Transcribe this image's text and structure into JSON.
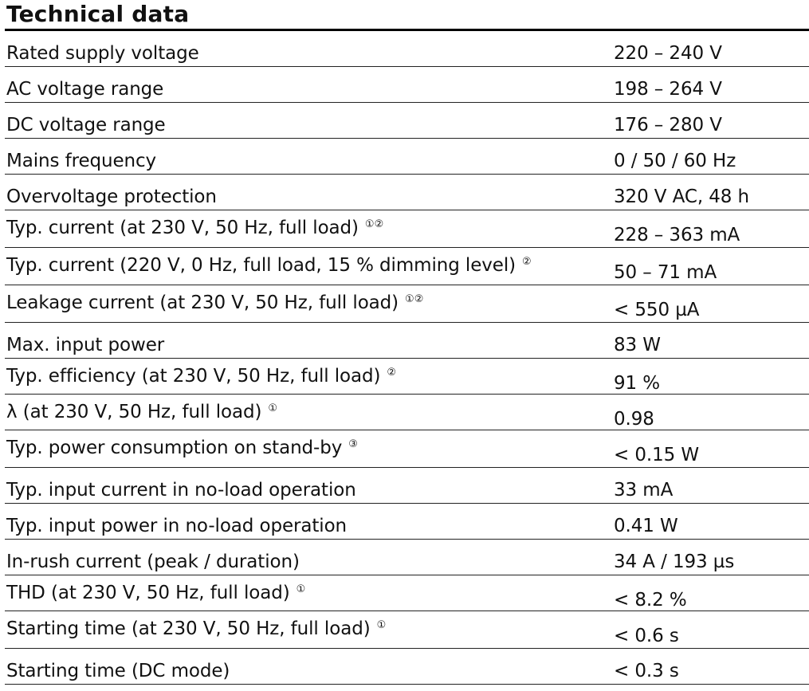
{
  "title": "Technical data",
  "rows": [
    {
      "label": "Rated supply voltage",
      "note": "",
      "value": "220 – 240 V"
    },
    {
      "label": "AC voltage range",
      "note": "",
      "value": "198 – 264 V"
    },
    {
      "label": "DC voltage range",
      "note": "",
      "value": "176 – 280 V"
    },
    {
      "label": "Mains frequency",
      "note": "",
      "value": "0 / 50 / 60 Hz"
    },
    {
      "label": "Overvoltage protection",
      "note": "",
      "value": "320 V AC, 48 h"
    },
    {
      "label": "Typ. current (at 230 V, 50 Hz, full load)",
      "note": "①②",
      "value": "228 – 363 mA"
    },
    {
      "label": "Typ. current (220 V, 0 Hz, full load, 15 % dimming level)",
      "note": "②",
      "value": "50 – 71 mA"
    },
    {
      "label": "Leakage current (at 230 V, 50 Hz, full load)",
      "note": "①②",
      "value": "< 550 µA"
    },
    {
      "label": "Max. input power",
      "note": "",
      "value": "83 W"
    },
    {
      "label": "Typ. efficiency (at 230 V, 50 Hz, full load)",
      "note": "②",
      "value": "91 %"
    },
    {
      "label": "λ (at 230 V, 50 Hz, full load)",
      "note": "①",
      "value": "0.98"
    },
    {
      "label": "Typ. power consumption on stand-by",
      "note": "③",
      "value": "< 0.15 W"
    },
    {
      "label": "Typ. input current in no-load operation",
      "note": "",
      "value": "33 mA"
    },
    {
      "label": "Typ. input power in no-load operation",
      "note": "",
      "value": "0.41 W"
    },
    {
      "label": "In-rush current (peak / duration)",
      "note": "",
      "value": "34 A / 193 µs"
    },
    {
      "label": "THD (at 230 V, 50 Hz, full load)",
      "note": "①",
      "value": "< 8.2 %"
    },
    {
      "label": "Starting time (at 230 V, 50 Hz, full load)",
      "note": "①",
      "value": "< 0.6 s"
    },
    {
      "label": "Starting time (DC mode)",
      "note": "",
      "value": "< 0.3 s"
    }
  ]
}
